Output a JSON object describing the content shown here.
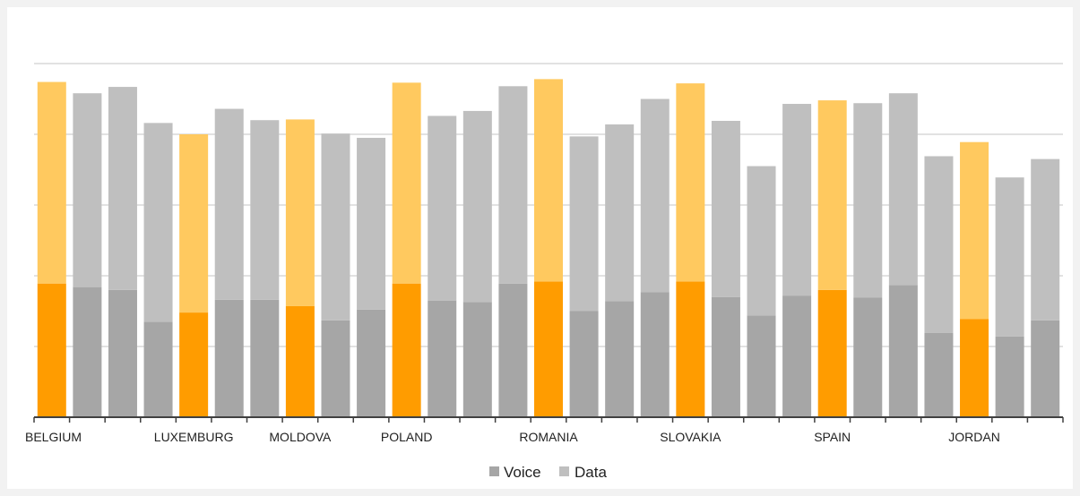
{
  "chart_data": {
    "type": "bar",
    "stacked": true,
    "title": "",
    "xlabel": "",
    "ylabel": "",
    "ylim": [
      0,
      5
    ],
    "grid": true,
    "legend_position": "bottom",
    "categories": [
      "BELGIUM",
      "",
      "",
      "",
      "LUXEMBURG",
      "",
      "",
      "MOLDOVA",
      "",
      "",
      "POLAND",
      "",
      "",
      "",
      "ROMANIA",
      "",
      "",
      "",
      "SLOVAKIA",
      "",
      "",
      "",
      "SPAIN",
      "",
      "",
      "",
      "JORDAN",
      "",
      ""
    ],
    "highlighted_indices": [
      0,
      4,
      7,
      10,
      14,
      18,
      22,
      26
    ],
    "series": [
      {
        "name": "Voice",
        "values": [
          1.89,
          1.84,
          1.8,
          1.35,
          1.48,
          1.66,
          1.66,
          1.57,
          1.37,
          1.52,
          1.89,
          1.65,
          1.63,
          1.89,
          1.92,
          1.5,
          1.64,
          1.77,
          1.92,
          1.7,
          1.44,
          1.72,
          1.8,
          1.69,
          1.87,
          1.19,
          1.39,
          1.14,
          1.37
        ]
      },
      {
        "name": "Data",
        "values": [
          2.85,
          2.74,
          2.87,
          2.81,
          2.52,
          2.7,
          2.54,
          2.64,
          2.64,
          2.43,
          2.84,
          2.61,
          2.7,
          2.79,
          2.86,
          2.47,
          2.5,
          2.73,
          2.8,
          2.49,
          2.11,
          2.71,
          2.68,
          2.75,
          2.71,
          2.5,
          2.5,
          2.25,
          2.28
        ]
      }
    ]
  },
  "colors": {
    "voice": "#a6a6a6",
    "data": "#bfbfbf",
    "voice_highlight": "#ff9c00",
    "data_highlight": "#ffc95f",
    "grid": "#d9d9d9",
    "axis": "#404040",
    "legend_voice_swatch": "#a6a6a6",
    "legend_data_swatch": "#bfbfbf"
  }
}
